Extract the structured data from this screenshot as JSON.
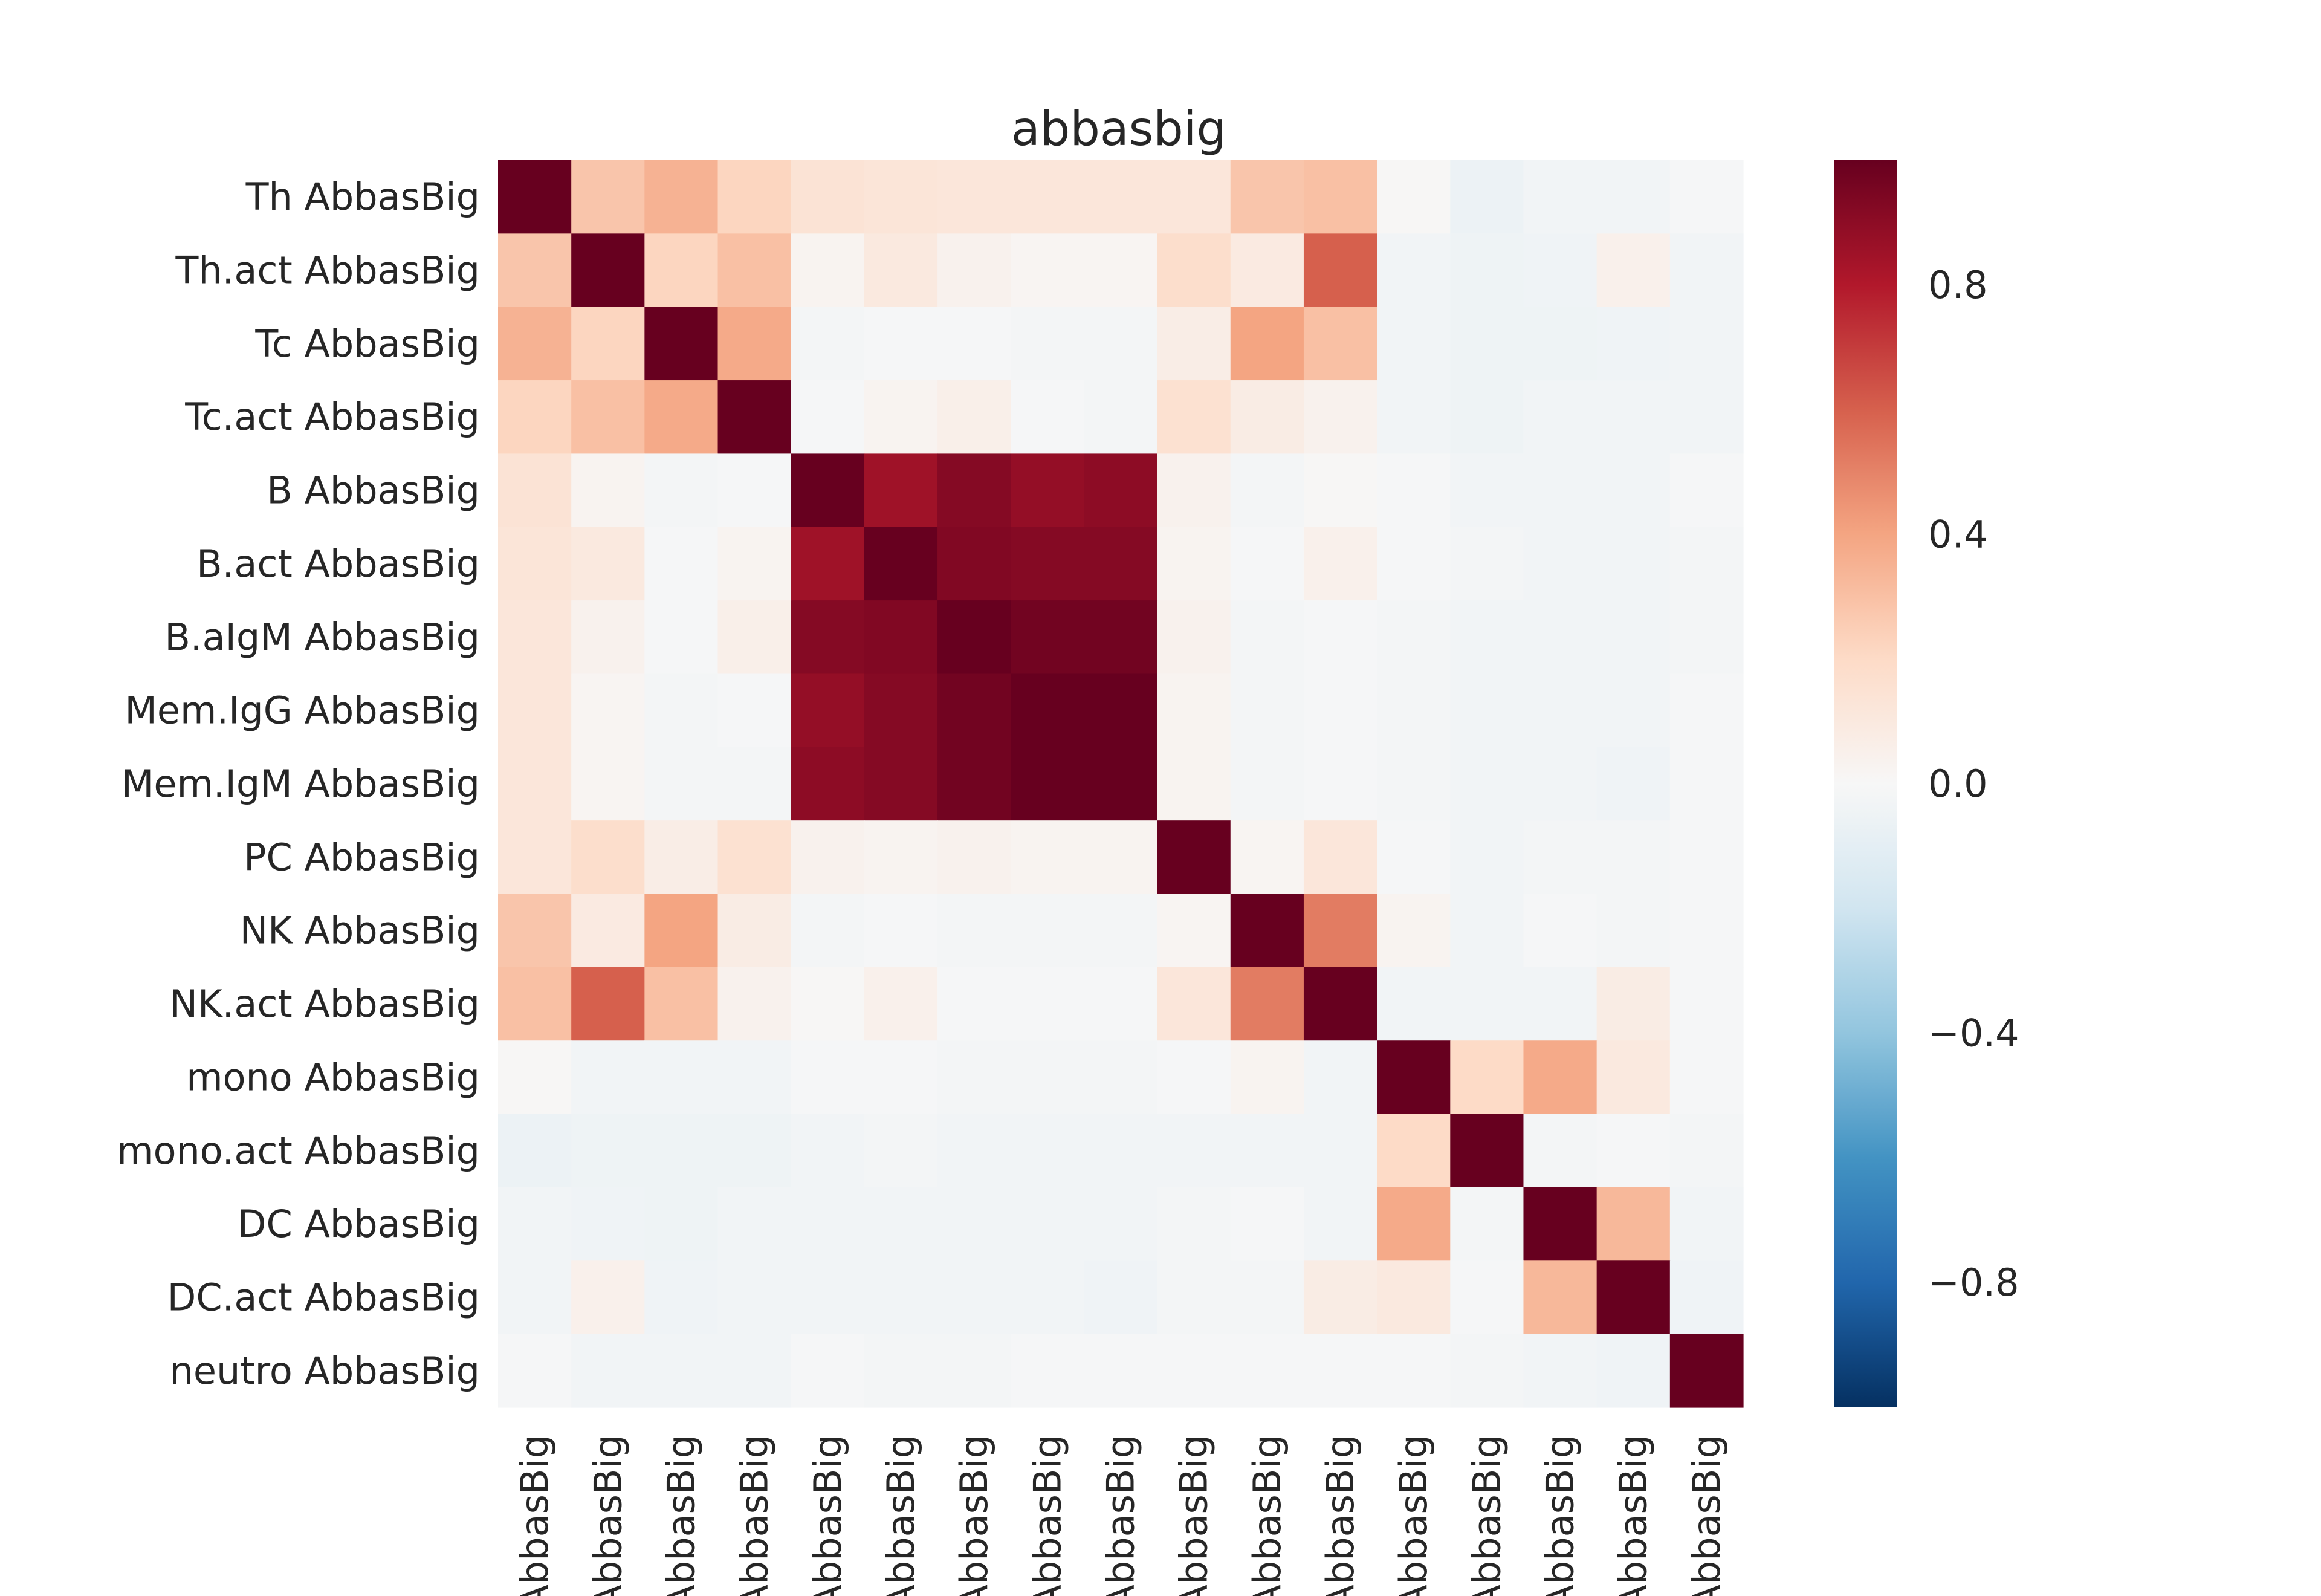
{
  "chart_data": {
    "type": "heatmap",
    "title": "abbasbig",
    "row_labels": [
      "Th AbbasBig",
      "Th.act AbbasBig",
      "Tc AbbasBig",
      "Tc.act AbbasBig",
      "B AbbasBig",
      "B.act AbbasBig",
      "B.aIgM AbbasBig",
      "Mem.IgG AbbasBig",
      "Mem.IgM AbbasBig",
      "PC AbbasBig",
      "NK AbbasBig",
      "NK.act AbbasBig",
      "mono AbbasBig",
      "mono.act AbbasBig",
      "DC AbbasBig",
      "DC.act AbbasBig",
      "neutro AbbasBig"
    ],
    "col_labels": [
      "AbbasBig",
      "AbbasBig",
      "AbbasBig",
      "AbbasBig",
      "AbbasBig",
      "AbbasBig",
      "AbbasBig",
      "AbbasBig",
      "AbbasBig",
      "AbbasBig",
      "AbbasBig",
      "AbbasBig",
      "AbbasBig",
      "AbbasBig",
      "AbbasBig",
      "AbbasBig",
      "AbbasBig"
    ],
    "values": [
      [
        1.0,
        0.28,
        0.35,
        0.22,
        0.14,
        0.13,
        0.12,
        0.12,
        0.12,
        0.12,
        0.28,
        0.3,
        0.01,
        -0.06,
        -0.03,
        -0.03,
        -0.01
      ],
      [
        0.28,
        1.0,
        0.22,
        0.3,
        0.03,
        0.1,
        0.04,
        0.02,
        0.02,
        0.18,
        0.09,
        0.6,
        -0.03,
        -0.05,
        -0.04,
        0.05,
        -0.03
      ],
      [
        0.35,
        0.22,
        1.0,
        0.38,
        -0.02,
        -0.01,
        -0.01,
        -0.02,
        -0.02,
        0.07,
        0.4,
        0.3,
        -0.03,
        -0.05,
        -0.05,
        -0.04,
        -0.03
      ],
      [
        0.22,
        0.3,
        0.38,
        1.0,
        -0.01,
        0.03,
        0.06,
        -0.01,
        -0.02,
        0.16,
        0.08,
        0.04,
        -0.03,
        -0.05,
        -0.03,
        -0.03,
        -0.03
      ],
      [
        0.14,
        0.03,
        -0.02,
        -0.01,
        1.0,
        0.85,
        0.92,
        0.88,
        0.9,
        0.04,
        -0.02,
        0.01,
        -0.01,
        -0.03,
        -0.03,
        -0.03,
        -0.01
      ],
      [
        0.13,
        0.1,
        -0.01,
        0.03,
        0.85,
        1.0,
        0.93,
        0.92,
        0.92,
        0.03,
        -0.01,
        0.05,
        -0.01,
        -0.02,
        -0.03,
        -0.03,
        -0.02
      ],
      [
        0.12,
        0.04,
        -0.01,
        0.06,
        0.92,
        0.93,
        1.0,
        0.97,
        0.97,
        0.04,
        -0.02,
        -0.01,
        -0.02,
        -0.03,
        -0.03,
        -0.03,
        -0.02
      ],
      [
        0.12,
        0.02,
        -0.02,
        -0.01,
        0.88,
        0.92,
        0.97,
        1.0,
        1.0,
        0.03,
        -0.02,
        -0.01,
        -0.02,
        -0.03,
        -0.03,
        -0.03,
        -0.01
      ],
      [
        0.12,
        0.02,
        -0.02,
        -0.02,
        0.9,
        0.92,
        0.97,
        1.0,
        1.0,
        0.03,
        -0.02,
        -0.01,
        -0.02,
        -0.03,
        -0.03,
        -0.04,
        -0.01
      ],
      [
        0.12,
        0.18,
        0.07,
        0.16,
        0.04,
        0.03,
        0.04,
        0.03,
        0.03,
        1.0,
        0.02,
        0.12,
        -0.01,
        -0.03,
        -0.02,
        -0.02,
        -0.01
      ],
      [
        0.28,
        0.09,
        0.4,
        0.08,
        -0.02,
        -0.01,
        -0.02,
        -0.02,
        -0.02,
        0.02,
        1.0,
        0.52,
        0.03,
        -0.03,
        -0.01,
        -0.02,
        -0.01
      ],
      [
        0.3,
        0.6,
        0.3,
        0.04,
        0.01,
        0.05,
        -0.01,
        -0.01,
        -0.01,
        0.12,
        0.52,
        1.0,
        -0.03,
        -0.03,
        -0.03,
        0.08,
        -0.01
      ],
      [
        0.01,
        -0.03,
        -0.03,
        -0.03,
        -0.01,
        -0.01,
        -0.02,
        -0.02,
        -0.02,
        -0.01,
        0.03,
        -0.03,
        1.0,
        0.2,
        0.38,
        0.1,
        -0.01
      ],
      [
        -0.06,
        -0.05,
        -0.05,
        -0.05,
        -0.03,
        -0.02,
        -0.03,
        -0.03,
        -0.03,
        -0.03,
        -0.03,
        -0.03,
        0.2,
        1.0,
        -0.02,
        -0.01,
        -0.02
      ],
      [
        -0.03,
        -0.04,
        -0.05,
        -0.03,
        -0.03,
        -0.03,
        -0.03,
        -0.03,
        -0.03,
        -0.02,
        -0.01,
        -0.03,
        0.38,
        -0.02,
        1.0,
        0.33,
        -0.03
      ],
      [
        -0.03,
        0.05,
        -0.04,
        -0.03,
        -0.03,
        -0.03,
        -0.03,
        -0.03,
        -0.04,
        -0.02,
        -0.02,
        0.08,
        0.1,
        -0.01,
        0.33,
        1.0,
        -0.04
      ],
      [
        -0.01,
        -0.03,
        -0.03,
        -0.03,
        -0.01,
        -0.02,
        -0.02,
        -0.01,
        -0.01,
        -0.01,
        -0.01,
        -0.01,
        -0.01,
        -0.02,
        -0.03,
        -0.04,
        1.0
      ]
    ],
    "vmin": -1.0,
    "vmax": 1.0,
    "colormap": "RdBu_r",
    "colorbar_ticks": [
      0.8,
      0.4,
      0.0,
      -0.4,
      -0.8
    ],
    "colorbar_tick_labels": [
      "0.8",
      "0.4",
      "0.0",
      "−0.4",
      "−0.8"
    ],
    "grid": false
  }
}
